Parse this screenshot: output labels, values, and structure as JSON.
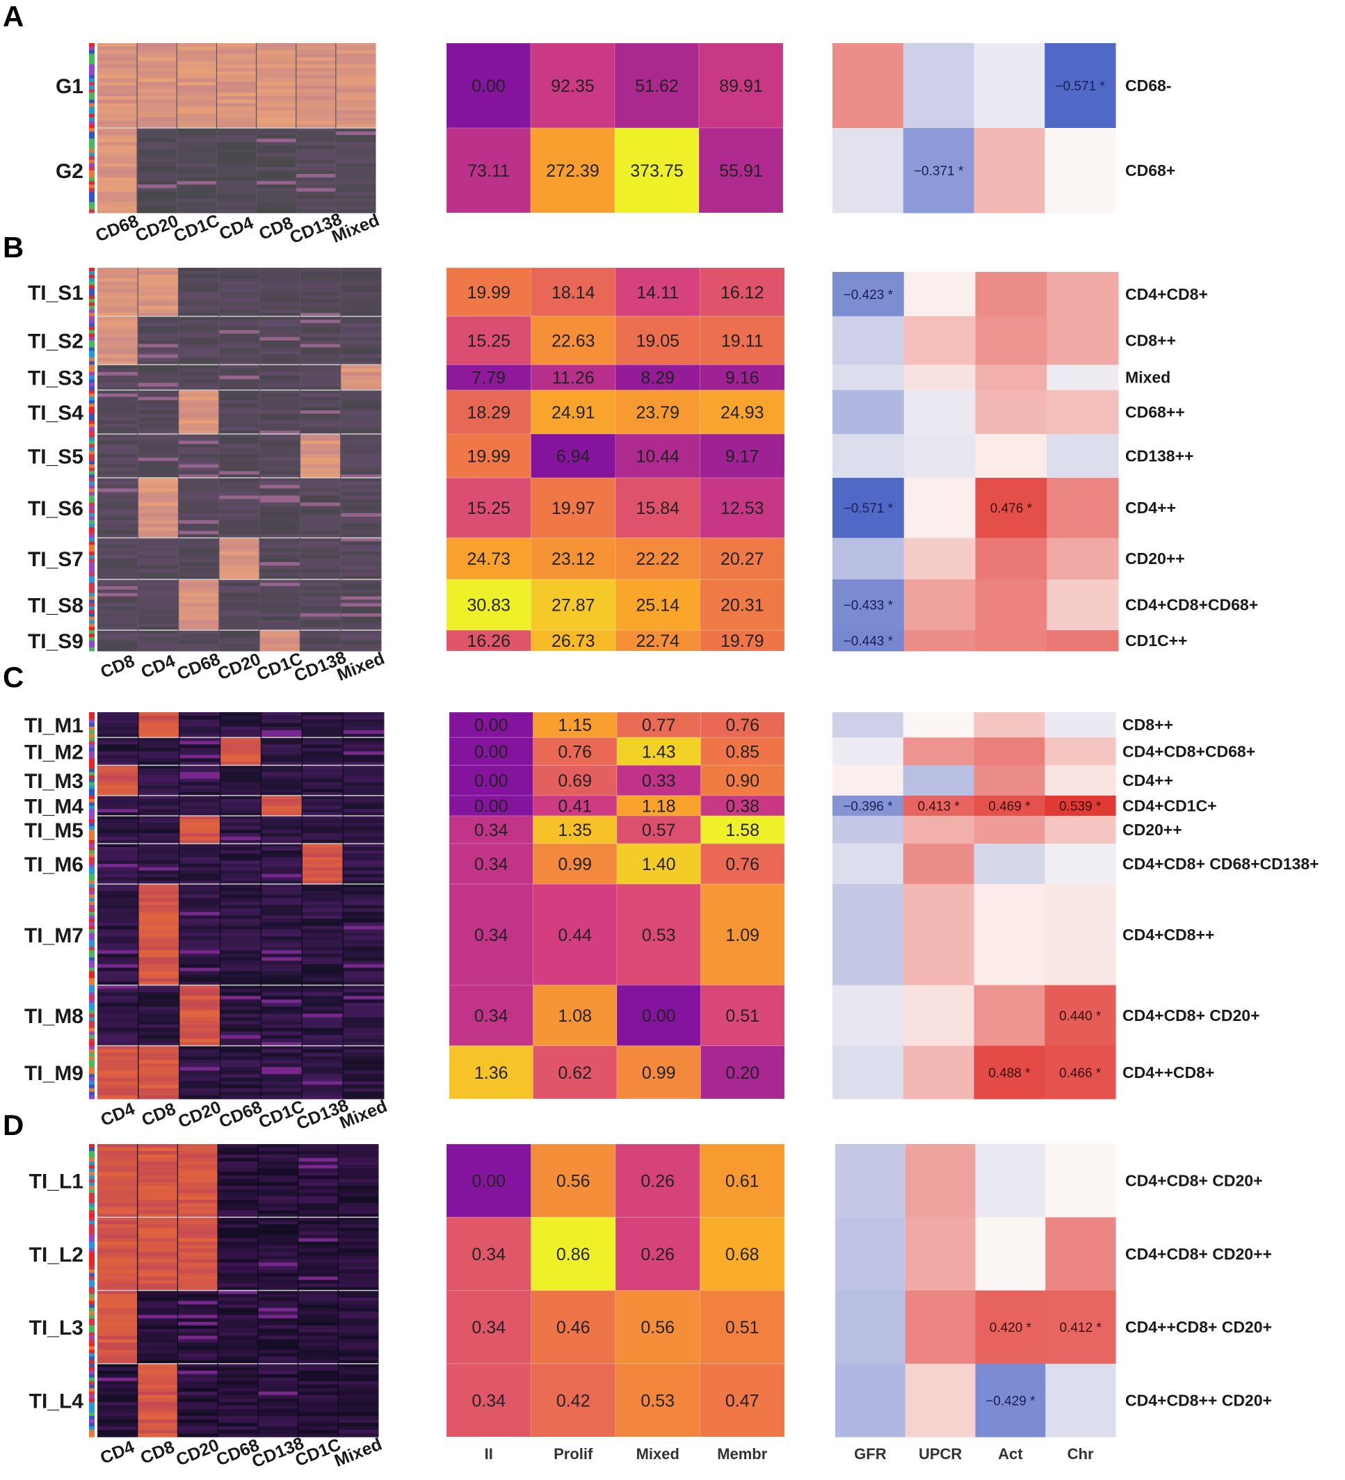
{
  "chart_data": [
    {
      "panel": "A",
      "type": "heatmap",
      "clusters": [
        "G1",
        "G2"
      ],
      "marker_columns": [
        "CD68",
        "CD20",
        "CD1C",
        "CD4",
        "CD8",
        "CD138",
        "Mixed"
      ],
      "value_columns": [
        "II",
        "Prolif",
        "Mixed",
        "Membr"
      ],
      "values": [
        [
          0.0,
          92.35,
          51.62,
          89.91
        ],
        [
          73.11,
          272.39,
          373.75,
          55.91
        ]
      ],
      "value_labels": [
        [
          "0.00",
          "92.35",
          "51.62",
          "89.91"
        ],
        [
          "73.11",
          "272.39",
          "373.75",
          "55.91"
        ]
      ],
      "corr_columns": [
        "GFR",
        "UPCR",
        "Act",
        "Chr"
      ],
      "correlations": [
        [
          0.3,
          -0.15,
          -0.05,
          -0.571
        ],
        [
          -0.08,
          -0.371,
          0.18,
          0.0
        ]
      ],
      "corr_labels": [
        [
          "",
          "",
          "",
          "−0.571 *"
        ],
        [
          "",
          "−0.371 *",
          "",
          ""
        ]
      ],
      "cell_types": [
        "CD68-",
        "CD68+"
      ]
    },
    {
      "panel": "B",
      "type": "heatmap",
      "clusters": [
        "TI_S1",
        "TI_S2",
        "TI_S3",
        "TI_S4",
        "TI_S5",
        "TI_S6",
        "TI_S7",
        "TI_S8",
        "TI_S9"
      ],
      "marker_columns": [
        "CD8",
        "CD4",
        "CD68",
        "CD20",
        "CD1C",
        "CD138",
        "Mixed"
      ],
      "value_columns": [
        "II",
        "Prolif",
        "Mixed",
        "Membr"
      ],
      "values": [
        [
          19.99,
          18.14,
          14.11,
          16.12
        ],
        [
          15.25,
          22.63,
          19.05,
          19.11
        ],
        [
          7.79,
          11.26,
          8.29,
          9.16
        ],
        [
          18.29,
          24.91,
          23.79,
          24.93
        ],
        [
          19.99,
          6.94,
          10.44,
          9.17
        ],
        [
          15.25,
          19.97,
          15.84,
          12.53
        ],
        [
          24.73,
          23.12,
          22.22,
          20.27
        ],
        [
          30.83,
          27.87,
          25.14,
          20.31
        ],
        [
          16.26,
          26.73,
          22.74,
          19.79
        ]
      ],
      "value_labels": [
        [
          "19.99",
          "18.14",
          "14.11",
          "16.12"
        ],
        [
          "15.25",
          "22.63",
          "19.05",
          "19.11"
        ],
        [
          "7.79",
          "11.26",
          "8.29",
          "9.16"
        ],
        [
          "18.29",
          "24.91",
          "23.79",
          "24.93"
        ],
        [
          "19.99",
          "6.94",
          "10.44",
          "9.17"
        ],
        [
          "15.25",
          "19.97",
          "15.84",
          "12.53"
        ],
        [
          "24.73",
          "23.12",
          "22.22",
          "20.27"
        ],
        [
          "30.83",
          "27.87",
          "25.14",
          "20.31"
        ],
        [
          "16.26",
          "26.73",
          "22.74",
          "19.79"
        ]
      ],
      "corr_columns": [
        "GFR",
        "UPCR",
        "Act",
        "Chr"
      ],
      "correlations": [
        [
          -0.423,
          0.02,
          0.3,
          0.22
        ],
        [
          -0.15,
          0.16,
          0.28,
          0.22
        ],
        [
          -0.1,
          0.06,
          0.2,
          -0.04
        ],
        [
          -0.25,
          -0.05,
          0.18,
          0.16
        ],
        [
          -0.1,
          -0.06,
          0.03,
          -0.1
        ],
        [
          -0.571,
          0.02,
          0.476,
          0.32
        ],
        [
          -0.22,
          0.12,
          0.36,
          0.22
        ],
        [
          -0.433,
          0.24,
          0.33,
          0.12
        ],
        [
          -0.443,
          0.3,
          0.33,
          0.36
        ]
      ],
      "corr_labels": [
        [
          "−0.423 *",
          "",
          "",
          ""
        ],
        [
          "",
          "",
          "",
          ""
        ],
        [
          "",
          "",
          "",
          ""
        ],
        [
          "",
          "",
          "",
          ""
        ],
        [
          "",
          "",
          "",
          ""
        ],
        [
          "−0.571 *",
          "",
          "0.476 *",
          ""
        ],
        [
          "",
          "",
          "",
          ""
        ],
        [
          "−0.433 *",
          "",
          "",
          ""
        ],
        [
          "−0.443 *",
          "",
          "",
          ""
        ]
      ],
      "cell_types": [
        "CD4+CD8+",
        "CD8++",
        "Mixed",
        "CD68++",
        "CD138++",
        "CD4++",
        "CD20++",
        "CD4+CD8+CD68+",
        "CD1C++"
      ]
    },
    {
      "panel": "C",
      "type": "heatmap",
      "clusters": [
        "TI_M1",
        "TI_M2",
        "TI_M3",
        "TI_M4",
        "TI_M5",
        "TI_M6",
        "TI_M7",
        "TI_M8",
        "TI_M9"
      ],
      "marker_columns": [
        "CD4",
        "CD8",
        "CD20",
        "CD68",
        "CD1C",
        "CD138",
        "Mixed"
      ],
      "value_columns": [
        "II",
        "Prolif",
        "Mixed",
        "Membr"
      ],
      "values": [
        [
          0.0,
          1.15,
          0.77,
          0.76
        ],
        [
          0.0,
          0.76,
          1.43,
          0.85
        ],
        [
          0.0,
          0.69,
          0.33,
          0.9
        ],
        [
          0.0,
          0.41,
          1.18,
          0.38
        ],
        [
          0.34,
          1.35,
          0.57,
          1.58
        ],
        [
          0.34,
          0.99,
          1.4,
          0.76
        ],
        [
          0.34,
          0.44,
          0.53,
          1.09
        ],
        [
          0.34,
          1.08,
          0.0,
          0.51
        ],
        [
          1.36,
          0.62,
          0.99,
          0.2
        ]
      ],
      "value_labels": [
        [
          "0.00",
          "1.15",
          "0.77",
          "0.76"
        ],
        [
          "0.00",
          "0.76",
          "1.43",
          "0.85"
        ],
        [
          "0.00",
          "0.69",
          "0.33",
          "0.90"
        ],
        [
          "0.00",
          "0.41",
          "1.18",
          "0.38"
        ],
        [
          "0.34",
          "1.35",
          "0.57",
          "1.58"
        ],
        [
          "0.34",
          "0.99",
          "1.40",
          "0.76"
        ],
        [
          "0.34",
          "0.44",
          "0.53",
          "1.09"
        ],
        [
          "0.34",
          "1.08",
          "0.00",
          "0.51"
        ],
        [
          "1.36",
          "0.62",
          "0.99",
          "0.20"
        ]
      ],
      "corr_columns": [
        "GFR",
        "UPCR",
        "Act",
        "Chr"
      ],
      "correlations": [
        [
          -0.15,
          0.0,
          0.14,
          -0.05
        ],
        [
          -0.04,
          0.28,
          0.34,
          0.14
        ],
        [
          0.02,
          -0.22,
          0.3,
          0.05
        ],
        [
          -0.396,
          0.413,
          0.469,
          0.539
        ],
        [
          -0.18,
          0.2,
          0.26,
          0.14
        ],
        [
          -0.1,
          0.3,
          -0.12,
          -0.03
        ],
        [
          -0.18,
          0.18,
          0.03,
          0.04
        ],
        [
          -0.06,
          0.06,
          0.28,
          0.44
        ],
        [
          -0.1,
          0.18,
          0.488,
          0.466
        ]
      ],
      "corr_labels": [
        [
          "",
          "",
          "",
          ""
        ],
        [
          "",
          "",
          "",
          ""
        ],
        [
          "",
          "",
          "",
          ""
        ],
        [
          "−0.396 *",
          "0.413 *",
          "0.469 *",
          "0.539 *"
        ],
        [
          "",
          "",
          "",
          ""
        ],
        [
          "",
          "",
          "",
          ""
        ],
        [
          "",
          "",
          "",
          ""
        ],
        [
          "",
          "",
          "",
          "0.440 *"
        ],
        [
          "",
          "",
          "0.488 *",
          "0.466 *"
        ]
      ],
      "cell_types": [
        "CD8++",
        "CD4+CD8+CD68+",
        "CD4++",
        "CD4+CD1C+",
        "CD20++",
        "CD4+CD8+ CD68+CD138+",
        "CD4+CD8++",
        "CD4+CD8+ CD20+",
        "CD4++CD8+"
      ]
    },
    {
      "panel": "D",
      "type": "heatmap",
      "clusters": [
        "TI_L1",
        "TI_L2",
        "TI_L3",
        "TI_L4"
      ],
      "marker_columns": [
        "CD4",
        "CD8",
        "CD20",
        "CD68",
        "CD138",
        "CD1C",
        "Mixed"
      ],
      "value_columns": [
        "II",
        "Prolif",
        "Mixed",
        "Membr"
      ],
      "values": [
        [
          0.0,
          0.56,
          0.26,
          0.61
        ],
        [
          0.34,
          0.86,
          0.26,
          0.68
        ],
        [
          0.34,
          0.46,
          0.56,
          0.51
        ],
        [
          0.34,
          0.42,
          0.53,
          0.47
        ]
      ],
      "value_labels": [
        [
          "0.00",
          "0.56",
          "0.26",
          "0.61"
        ],
        [
          "0.34",
          "0.86",
          "0.26",
          "0.68"
        ],
        [
          "0.34",
          "0.46",
          "0.56",
          "0.51"
        ],
        [
          "0.34",
          "0.42",
          "0.53",
          "0.47"
        ]
      ],
      "corr_columns": [
        "GFR",
        "UPCR",
        "Act",
        "Chr"
      ],
      "correlations": [
        [
          -0.18,
          0.24,
          -0.05,
          0.0
        ],
        [
          -0.2,
          0.22,
          0.0,
          0.32
        ],
        [
          -0.22,
          0.32,
          0.42,
          0.412
        ],
        [
          -0.25,
          0.1,
          -0.429,
          -0.1
        ]
      ],
      "corr_labels": [
        [
          "",
          "",
          "",
          ""
        ],
        [
          "",
          "",
          "",
          ""
        ],
        [
          "",
          "",
          "0.420 *",
          "0.412 *"
        ],
        [
          "",
          "",
          "−0.429 *",
          ""
        ]
      ],
      "cell_types": [
        "CD4+CD8+ CD20+",
        "CD4+CD8+ CD20++",
        "CD4++CD8+ CD20+",
        "CD4+CD8++ CD20+"
      ]
    }
  ],
  "panel_letters": [
    "A",
    "B",
    "C",
    "D"
  ],
  "bottom_value_labels": [
    "II",
    "Prolif",
    "Mixed",
    "Membr"
  ],
  "bottom_corr_labels": [
    "GFR",
    "UPCR",
    "Act",
    "Chr"
  ]
}
